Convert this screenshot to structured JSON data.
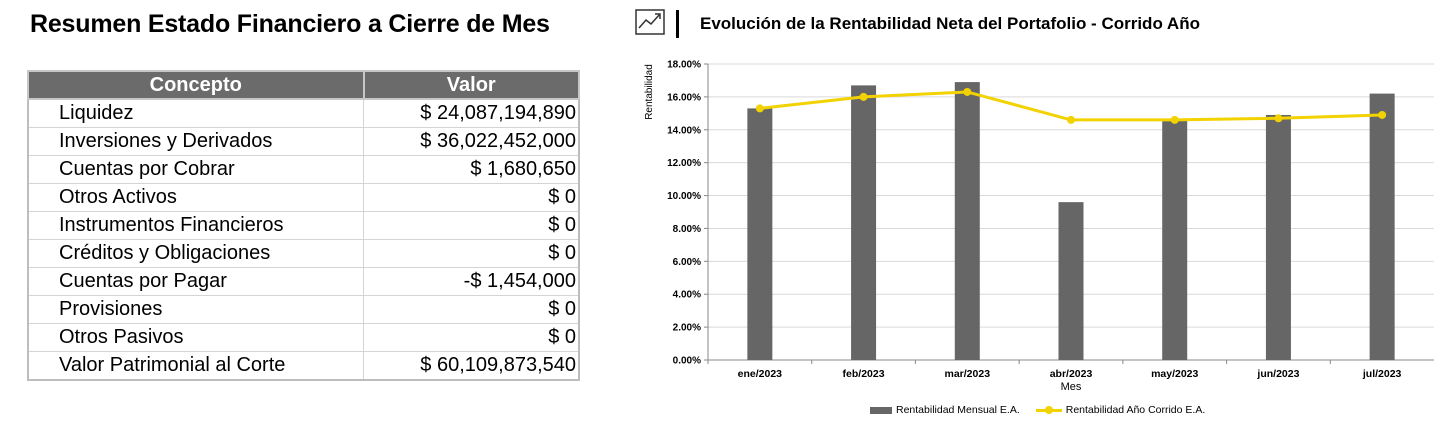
{
  "summary": {
    "title": "Resumen Estado Financiero a Cierre de Mes",
    "headers": {
      "concept": "Concepto",
      "value": "Valor"
    },
    "rows": [
      {
        "concept": "Liquidez",
        "value": "$ 24,087,194,890"
      },
      {
        "concept": "Inversiones y Derivados",
        "value": "$ 36,022,452,000"
      },
      {
        "concept": "Cuentas por Cobrar",
        "value": "$ 1,680,650"
      },
      {
        "concept": "Otros Activos",
        "value": "$ 0"
      },
      {
        "concept": "Instrumentos Financieros",
        "value": "$ 0"
      },
      {
        "concept": "Créditos y Obligaciones",
        "value": "$ 0"
      },
      {
        "concept": "Cuentas por Pagar",
        "value": "-$ 1,454,000"
      },
      {
        "concept": "Provisiones",
        "value": "$ 0"
      },
      {
        "concept": "Otros Pasivos",
        "value": "$ 0"
      },
      {
        "concept": "Valor Patrimonial al Corte",
        "value": "$ 60,109,873,540"
      }
    ]
  },
  "chart_header": {
    "title": "Evolución de la Rentabilidad Neta del Portafolio - Corrido Año",
    "icon": "trend-chart-icon"
  },
  "chart_data": {
    "type": "bar",
    "title": "Evolución de la Rentabilidad Neta del Portafolio - Corrido Año",
    "xlabel": "Mes",
    "ylabel": "Rentabilidad",
    "ylim": [
      0,
      18
    ],
    "yticks": [
      "0.00%",
      "2.00%",
      "4.00%",
      "6.00%",
      "8.00%",
      "10.00%",
      "12.00%",
      "14.00%",
      "16.00%",
      "18.00%"
    ],
    "categories": [
      "ene/2023",
      "feb/2023",
      "mar/2023",
      "abr/2023",
      "may/2023",
      "jun/2023",
      "jul/2023"
    ],
    "series": [
      {
        "name": "Rentabilidad Mensual E.A.",
        "kind": "bar",
        "color": "#666666",
        "values": [
          15.3,
          16.7,
          16.9,
          9.6,
          14.6,
          14.9,
          16.2
        ]
      },
      {
        "name": "Rentabilidad Año Corrido E.A.",
        "kind": "line",
        "color": "#f2d200",
        "values": [
          15.3,
          16.0,
          16.3,
          14.6,
          14.6,
          14.7,
          14.9
        ]
      }
    ],
    "grid": true,
    "legend": "bottom-center"
  }
}
